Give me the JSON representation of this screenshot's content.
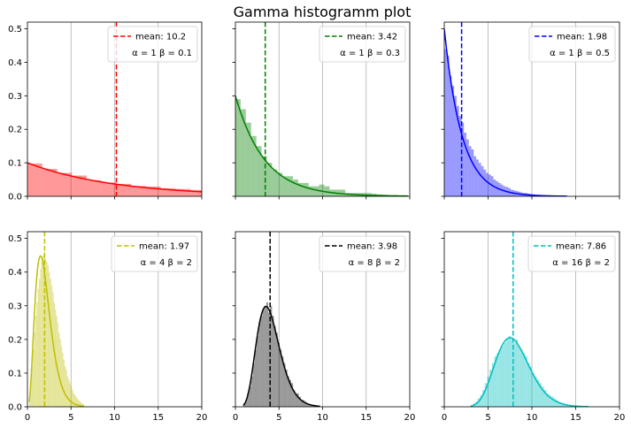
{
  "figure": {
    "title": "Gamma histogramm plot"
  },
  "chart_data": [
    {
      "type": "bar",
      "alpha": 1,
      "beta": 0.1,
      "color": "#ff0000",
      "mean": 10.2,
      "mean_label": "mean: 10.2",
      "param_label_alpha": "α = 1",
      "param_label_beta": "β = 0.1",
      "xlim": [
        0,
        20
      ],
      "ylim": [
        0,
        0.52
      ],
      "grid": "vertical",
      "legend": "top-right",
      "xticks": [
        "0",
        "5",
        "10",
        "15",
        "20"
      ],
      "yticks": [
        "0.0",
        "0.1",
        "0.2",
        "0.3",
        "0.4",
        "0.5"
      ],
      "show_xticklabels": false,
      "show_yticklabels": true,
      "bin_width": 1.7,
      "bin_start": 0,
      "hist": [
        0.098,
        0.082,
        0.07,
        0.062,
        0.048,
        0.041,
        0.037,
        0.031,
        0.029,
        0.024,
        0.022,
        0.019
      ]
    },
    {
      "type": "bar",
      "alpha": 1,
      "beta": 0.3,
      "color": "#008000",
      "mean": 3.42,
      "mean_label": "mean: 3.42",
      "param_label_alpha": "α = 1",
      "param_label_beta": "β = 0.3",
      "xlim": [
        0,
        20
      ],
      "ylim": [
        0,
        0.52
      ],
      "grid": "vertical",
      "legend": "top-right",
      "xticks": [
        "0",
        "5",
        "10",
        "15",
        "20"
      ],
      "yticks": [
        "0.0",
        "0.1",
        "0.2",
        "0.3",
        "0.4",
        "0.5"
      ],
      "show_xticklabels": false,
      "show_yticklabels": false,
      "bin_width": 0.6,
      "bin_start": 0,
      "hist": [
        0.29,
        0.26,
        0.22,
        0.18,
        0.15,
        0.12,
        0.1,
        0.08,
        0.07,
        0.06,
        0.06,
        0.05,
        0.04,
        0.04,
        0.03,
        0.03,
        0.035,
        0.03,
        0.02,
        0.02,
        0.02,
        0.01,
        0.01,
        0.01,
        0.01,
        0.01,
        0.008,
        0.006,
        0.005,
        0.004,
        0.004,
        0.003,
        0.003
      ]
    },
    {
      "type": "bar",
      "alpha": 1,
      "beta": 0.5,
      "color": "#0000ff",
      "mean": 1.98,
      "mean_label": "mean: 1.98",
      "param_label_alpha": "α = 1",
      "param_label_beta": "β = 0.5",
      "xlim": [
        0,
        20
      ],
      "ylim": [
        0,
        0.52
      ],
      "grid": "vertical",
      "legend": "top-right",
      "xticks": [
        "0",
        "5",
        "10",
        "15",
        "20"
      ],
      "yticks": [
        "0.0",
        "0.1",
        "0.2",
        "0.3",
        "0.4",
        "0.5"
      ],
      "show_xticklabels": false,
      "show_yticklabels": false,
      "bin_width": 0.28,
      "bin_start": 0,
      "hist": [
        0.44,
        0.42,
        0.36,
        0.33,
        0.3,
        0.27,
        0.24,
        0.22,
        0.19,
        0.17,
        0.15,
        0.14,
        0.12,
        0.11,
        0.1,
        0.09,
        0.08,
        0.07,
        0.065,
        0.06,
        0.05,
        0.045,
        0.04,
        0.035,
        0.03,
        0.028,
        0.025,
        0.02,
        0.018,
        0.016,
        0.014,
        0.012,
        0.01,
        0.01,
        0.008,
        0.007,
        0.006,
        0.005,
        0.005,
        0.004,
        0.004,
        0.003,
        0.003,
        0.003,
        0.002,
        0.002,
        0.002,
        0.002,
        0.001,
        0.001
      ]
    },
    {
      "type": "bar",
      "alpha": 4,
      "beta": 2,
      "color": "#bfbf00",
      "mean": 1.97,
      "mean_label": "mean: 1.97",
      "param_label_alpha": "α = 4",
      "param_label_beta": "β = 2",
      "xlim": [
        0,
        20
      ],
      "ylim": [
        0,
        0.52
      ],
      "grid": "vertical",
      "legend": "top-right",
      "xticks": [
        "0",
        "5",
        "10",
        "15",
        "20"
      ],
      "yticks": [
        "0.0",
        "0.1",
        "0.2",
        "0.3",
        "0.4",
        "0.5"
      ],
      "show_xticklabels": true,
      "show_yticklabels": true,
      "bin_width": 0.14,
      "bin_start": 0.2,
      "hist": [
        0.03,
        0.07,
        0.12,
        0.17,
        0.22,
        0.27,
        0.31,
        0.35,
        0.38,
        0.41,
        0.43,
        0.45,
        0.46,
        0.44,
        0.43,
        0.42,
        0.4,
        0.38,
        0.36,
        0.34,
        0.31,
        0.29,
        0.27,
        0.25,
        0.22,
        0.2,
        0.18,
        0.16,
        0.14,
        0.12,
        0.11,
        0.09,
        0.08,
        0.07,
        0.06,
        0.05,
        0.04,
        0.035,
        0.03,
        0.025,
        0.02,
        0.016,
        0.013,
        0.01,
        0.008
      ]
    },
    {
      "type": "bar",
      "alpha": 8,
      "beta": 2,
      "color": "#000000",
      "mean": 3.98,
      "mean_label": "mean: 3.98",
      "param_label_alpha": "α = 8",
      "param_label_beta": "β = 2",
      "xlim": [
        0,
        20
      ],
      "ylim": [
        0,
        0.52
      ],
      "grid": "vertical",
      "legend": "top-right",
      "xticks": [
        "0",
        "5",
        "10",
        "15",
        "20"
      ],
      "yticks": [
        "0.0",
        "0.1",
        "0.2",
        "0.3",
        "0.4",
        "0.5"
      ],
      "show_xticklabels": true,
      "show_yticklabels": false,
      "bin_width": 0.22,
      "bin_start": 0.9,
      "hist": [
        0.01,
        0.02,
        0.04,
        0.06,
        0.09,
        0.13,
        0.17,
        0.21,
        0.25,
        0.27,
        0.29,
        0.3,
        0.31,
        0.28,
        0.3,
        0.27,
        0.24,
        0.22,
        0.19,
        0.17,
        0.15,
        0.13,
        0.11,
        0.09,
        0.08,
        0.07,
        0.05,
        0.04,
        0.04,
        0.03,
        0.02,
        0.02,
        0.015,
        0.01,
        0.008,
        0.006,
        0.005,
        0.004,
        0.003,
        0.002
      ]
    },
    {
      "type": "bar",
      "alpha": 16,
      "beta": 2,
      "color": "#00bfbf",
      "mean": 7.86,
      "mean_label": "mean: 7.86",
      "param_label_alpha": "α = 16",
      "param_label_beta": "β = 2",
      "xlim": [
        0,
        20
      ],
      "ylim": [
        0,
        0.52
      ],
      "grid": "vertical",
      "legend": "top-right",
      "xticks": [
        "0",
        "5",
        "10",
        "15",
        "20"
      ],
      "yticks": [
        "0.0",
        "0.1",
        "0.2",
        "0.3",
        "0.4",
        "0.5"
      ],
      "show_xticklabels": true,
      "show_yticklabels": false,
      "bin_width": 0.27,
      "bin_start": 3.0,
      "hist": [
        0.005,
        0.01,
        0.015,
        0.025,
        0.035,
        0.05,
        0.07,
        0.09,
        0.11,
        0.13,
        0.15,
        0.16,
        0.17,
        0.18,
        0.19,
        0.2,
        0.21,
        0.2,
        0.19,
        0.2,
        0.18,
        0.17,
        0.16,
        0.15,
        0.13,
        0.12,
        0.1,
        0.09,
        0.08,
        0.07,
        0.06,
        0.05,
        0.04,
        0.035,
        0.03,
        0.025,
        0.02,
        0.015,
        0.012,
        0.01,
        0.008,
        0.006,
        0.005,
        0.004,
        0.003,
        0.003,
        0.002,
        0.002,
        0.001,
        0.001
      ]
    }
  ]
}
